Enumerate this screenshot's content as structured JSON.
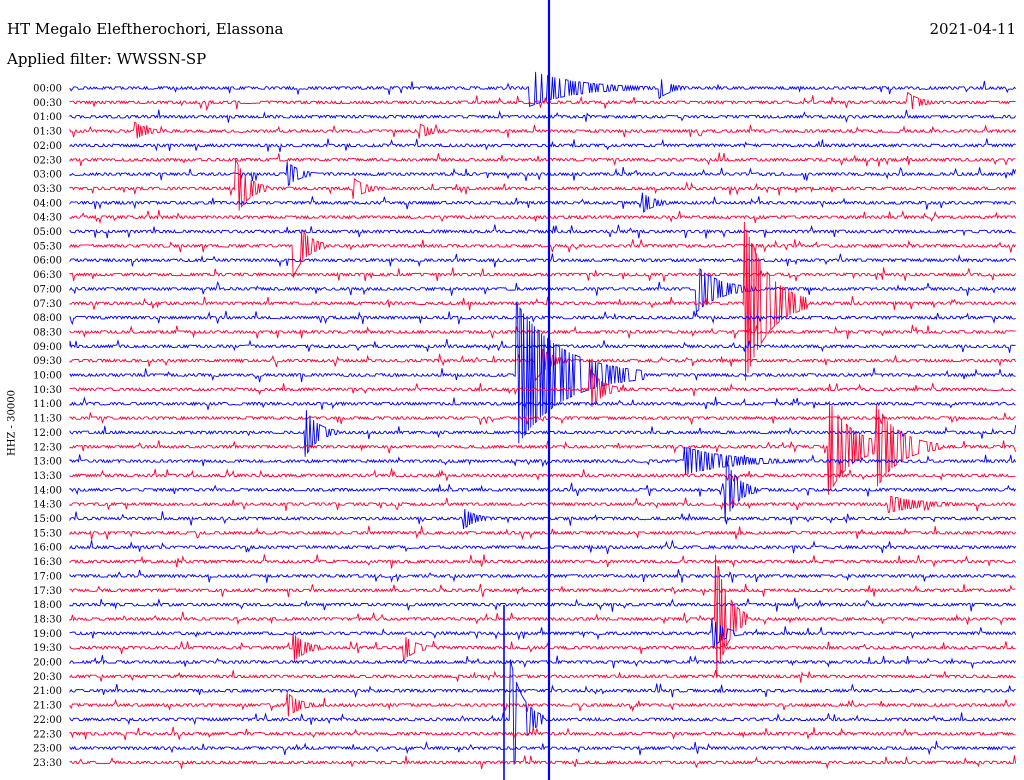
{
  "header": {
    "station": "HT Megalo Eleftherochori, Elassona",
    "filter": "Applied filter: WWSSN-SP",
    "date": "2021-04-11"
  },
  "colors": {
    "trace_a": "#0000ff",
    "trace_b": "#ff0033",
    "marker": "#0000ff"
  },
  "chart_data": {
    "type": "line",
    "title": "",
    "ylabel": "HHZ - 30000",
    "rows": [
      "00:00",
      "00:30",
      "01:00",
      "01:30",
      "02:00",
      "02:30",
      "03:00",
      "03:30",
      "04:00",
      "04:30",
      "05:00",
      "05:30",
      "06:00",
      "06:30",
      "07:00",
      "07:30",
      "08:00",
      "08:30",
      "09:00",
      "09:30",
      "10:00",
      "10:30",
      "11:00",
      "11:30",
      "12:00",
      "12:30",
      "13:00",
      "13:30",
      "14:00",
      "14:30",
      "15:00",
      "15:30",
      "16:00",
      "16:30",
      "17:00",
      "17:30",
      "18:00",
      "18:30",
      "19:00",
      "19:30",
      "20:00",
      "20:30",
      "21:00",
      "21:30",
      "22:00",
      "22:30",
      "23:00",
      "23:30"
    ],
    "minutes_per_row": 30,
    "events": [
      {
        "row": "00:00",
        "minute": 14.6,
        "amplitude": 18,
        "duration_min": 4
      },
      {
        "row": "00:00",
        "minute": 18.7,
        "amplitude": 10,
        "duration_min": 1
      },
      {
        "row": "00:30",
        "minute": 26.6,
        "amplitude": 9,
        "duration_min": 1
      },
      {
        "row": "01:30",
        "minute": 2.1,
        "amplitude": 8,
        "duration_min": 1
      },
      {
        "row": "01:30",
        "minute": 11.1,
        "amplitude": 7,
        "duration_min": 1
      },
      {
        "row": "03:00",
        "minute": 6.9,
        "amplitude": 12,
        "duration_min": 1
      },
      {
        "row": "03:30",
        "minute": 9.0,
        "amplitude": 10,
        "duration_min": 1
      },
      {
        "row": "03:30",
        "minute": 5.3,
        "amplitude": 26,
        "duration_min": 1
      },
      {
        "row": "04:00",
        "minute": 18.2,
        "amplitude": 9,
        "duration_min": 1
      },
      {
        "row": "05:30",
        "minute": 7.1,
        "amplitude": 30,
        "duration_min": 1
      },
      {
        "row": "07:00",
        "minute": 19.9,
        "amplitude": 22,
        "duration_min": 2
      },
      {
        "row": "07:30",
        "minute": 21.4,
        "amplitude": 80,
        "duration_min": 2
      },
      {
        "row": "09:30",
        "minute": 14.8,
        "amplitude": 18,
        "duration_min": 1
      },
      {
        "row": "10:00",
        "minute": 15.7,
        "amplitude": 20,
        "duration_min": 1
      },
      {
        "row": "10:00",
        "minute": 14.2,
        "amplitude": 70,
        "duration_min": 4
      },
      {
        "row": "10:30",
        "minute": 16.5,
        "amplitude": 20,
        "duration_min": 1
      },
      {
        "row": "12:00",
        "minute": 7.5,
        "amplitude": 22,
        "duration_min": 1
      },
      {
        "row": "12:30",
        "minute": 24.1,
        "amplitude": 45,
        "duration_min": 2
      },
      {
        "row": "12:30",
        "minute": 25.6,
        "amplitude": 40,
        "duration_min": 2
      },
      {
        "row": "13:00",
        "minute": 19.5,
        "amplitude": 14,
        "duration_min": 4
      },
      {
        "row": "14:00",
        "minute": 20.8,
        "amplitude": 30,
        "duration_min": 1
      },
      {
        "row": "14:30",
        "minute": 26.0,
        "amplitude": 8,
        "duration_min": 3
      },
      {
        "row": "15:00",
        "minute": 12.5,
        "amplitude": 10,
        "duration_min": 1
      },
      {
        "row": "18:30",
        "minute": 20.5,
        "amplitude": 60,
        "duration_min": 1
      },
      {
        "row": "19:00",
        "minute": 20.4,
        "amplitude": 14,
        "duration_min": 1
      },
      {
        "row": "19:30",
        "minute": 7.1,
        "amplitude": 14,
        "duration_min": 1
      },
      {
        "row": "19:30",
        "minute": 10.6,
        "amplitude": 12,
        "duration_min": 1
      },
      {
        "row": "21:30",
        "minute": 6.9,
        "amplitude": 12,
        "duration_min": 1
      },
      {
        "row": "22:00",
        "minute": 14.0,
        "amplitude": 55,
        "duration_min": 1
      }
    ]
  }
}
